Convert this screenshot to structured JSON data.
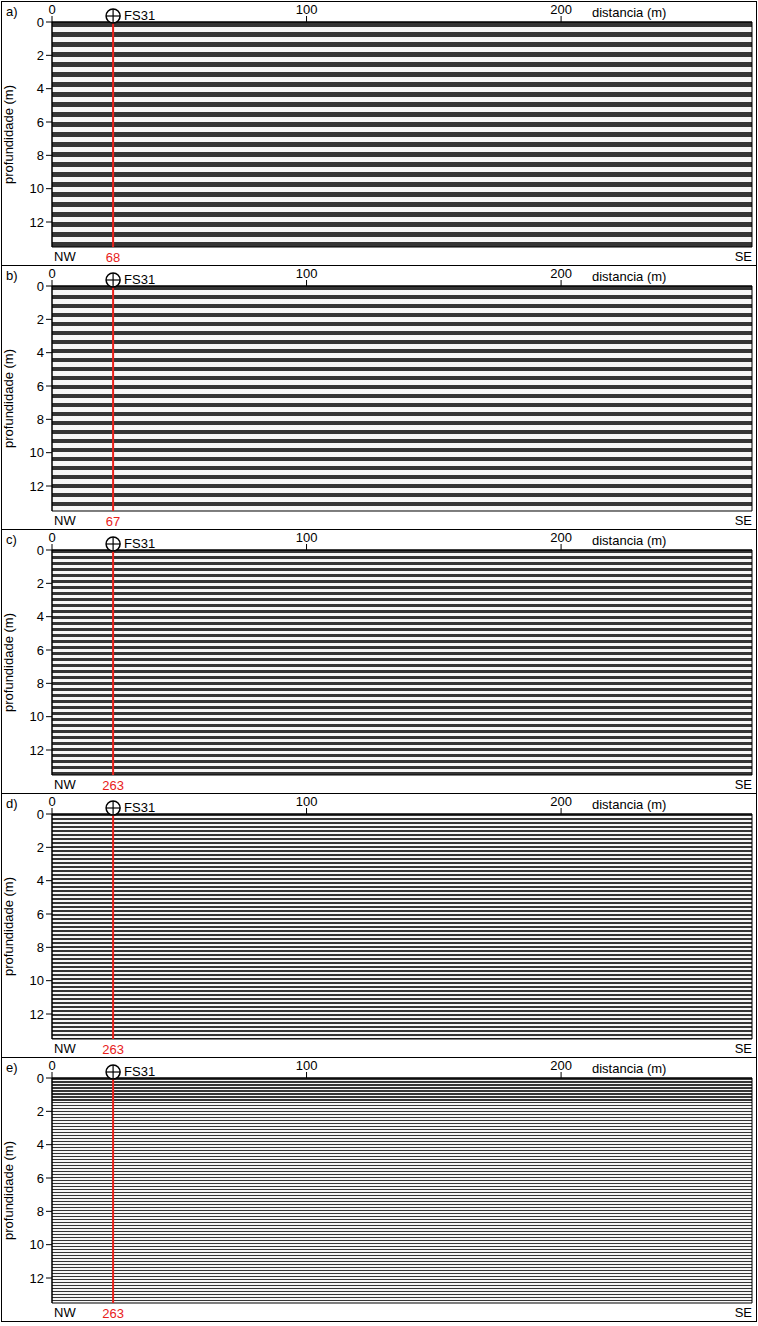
{
  "chart_data": [
    {
      "type": "radargram",
      "panel": "a)",
      "x_label": "distancia (m)",
      "y_label": "profundidade (m)",
      "xlim": [
        0,
        275
      ],
      "xticks": [
        0,
        100,
        200
      ],
      "ylim": [
        0,
        13.5
      ],
      "yticks": [
        0,
        2,
        4,
        6,
        8,
        10,
        12
      ],
      "marker": {
        "name": "FS31",
        "x": 24,
        "value": 68
      },
      "left_label": "NW",
      "right_label": "SE"
    },
    {
      "type": "radargram",
      "panel": "b)",
      "x_label": "distancia (m)",
      "y_label": "profundidade (m)",
      "xlim": [
        0,
        275
      ],
      "xticks": [
        0,
        100,
        200
      ],
      "ylim": [
        0,
        13.5
      ],
      "yticks": [
        0,
        2,
        4,
        6,
        8,
        10,
        12
      ],
      "marker": {
        "name": "FS31",
        "x": 24,
        "value": 67
      },
      "left_label": "NW",
      "right_label": "SE"
    },
    {
      "type": "radargram",
      "panel": "c)",
      "x_label": "distancia (m)",
      "y_label": "profundidade (m)",
      "xlim": [
        0,
        275
      ],
      "xticks": [
        0,
        100,
        200
      ],
      "ylim": [
        0,
        13.5
      ],
      "yticks": [
        0,
        2,
        4,
        6,
        8,
        10,
        12
      ],
      "marker": {
        "name": "FS31",
        "x": 24,
        "value": 263
      },
      "left_label": "NW",
      "right_label": "SE"
    },
    {
      "type": "radargram",
      "panel": "d)",
      "x_label": "distancia (m)",
      "y_label": "profundidade (m)",
      "xlim": [
        0,
        275
      ],
      "xticks": [
        0,
        100,
        200
      ],
      "ylim": [
        0,
        13.5
      ],
      "yticks": [
        0,
        2,
        4,
        6,
        8,
        10,
        12
      ],
      "marker": {
        "name": "FS31",
        "x": 24,
        "value": 263
      },
      "left_label": "NW",
      "right_label": "SE"
    },
    {
      "type": "radargram",
      "panel": "e)",
      "x_label": "distancia (m)",
      "y_label": "profundidade (m)",
      "xlim": [
        0,
        275
      ],
      "xticks": [
        0,
        100,
        200
      ],
      "ylim": [
        0,
        13.5
      ],
      "yticks": [
        0,
        2,
        4,
        6,
        8,
        10,
        12
      ],
      "marker": {
        "name": "FS31",
        "x": 24,
        "value": 263
      },
      "left_label": "NW",
      "right_label": "SE"
    }
  ]
}
